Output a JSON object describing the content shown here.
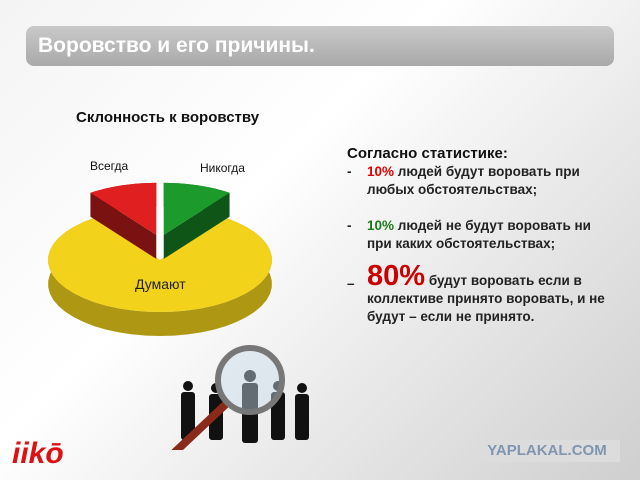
{
  "slide": {
    "title": "Воровство и его причины.",
    "logo": "iiko",
    "watermark": "YAPLAKAL.COM"
  },
  "chart_data": {
    "type": "pie",
    "title": "Склонность к воровству",
    "categories": [
      "Всегда",
      "Никогда",
      "Думают"
    ],
    "values": [
      10,
      10,
      80
    ],
    "colors": [
      "#e02020",
      "#1c9a2c",
      "#f2d21a"
    ],
    "exploded": [
      "Всегда",
      "Никогда"
    ],
    "style": "3d"
  },
  "stats": {
    "heading": "Согласно статистике:",
    "items": [
      {
        "dash": "-",
        "pct": "10%",
        "text": "людей будут воровать при любых обстоятельствах;"
      },
      {
        "dash": "-",
        "pct": "10%",
        "text": "людей не будут воровать ни при каких обстоятельствах;"
      },
      {
        "dash": "–",
        "pct": "80%",
        "text": "будут воровать если в коллективе принято воровать, и не будут – если не принято."
      }
    ]
  }
}
